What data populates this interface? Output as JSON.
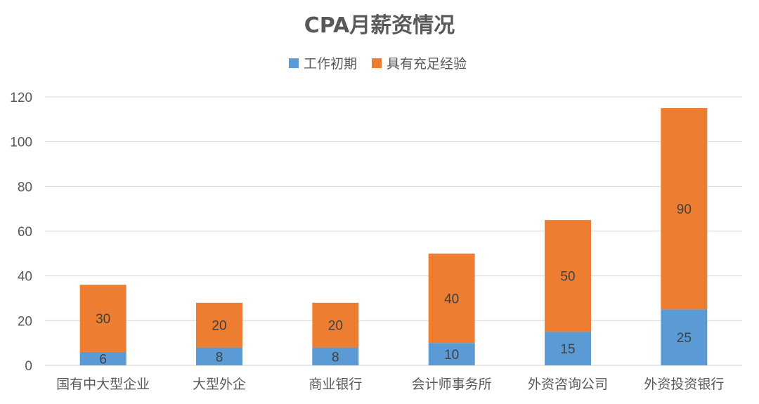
{
  "chart_data": {
    "type": "bar",
    "stacked": true,
    "title": "CPA月薪资情况",
    "xlabel": "",
    "ylabel": "",
    "ylim": [
      0,
      120
    ],
    "yticks": [
      0,
      20,
      40,
      60,
      80,
      100,
      120
    ],
    "grid": true,
    "legend_position": "top-center",
    "categories": [
      "国有中大型企业",
      "大型外企",
      "商业银行",
      "会计师事务所",
      "外资咨询公司",
      "外资投资银行"
    ],
    "series": [
      {
        "name": "工作初期",
        "color": "#5B9BD5",
        "values": [
          6,
          8,
          8,
          10,
          15,
          25
        ]
      },
      {
        "name": "具有充足经验",
        "color": "#ED7D31",
        "values": [
          30,
          20,
          20,
          40,
          50,
          90
        ]
      }
    ],
    "data_labels": true
  }
}
